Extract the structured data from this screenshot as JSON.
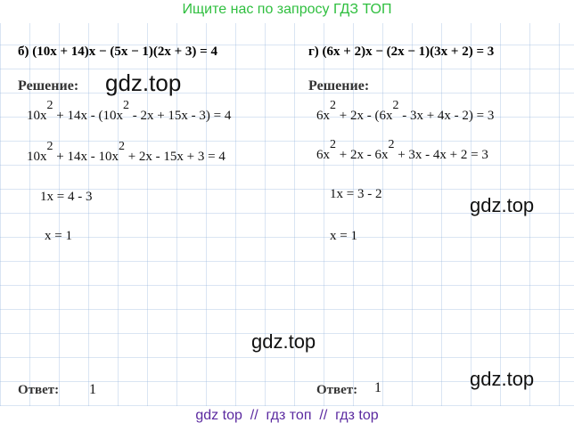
{
  "header": {
    "title": "Ищите нас по запросу ГДЗ ТОП"
  },
  "left": {
    "problem": "б) (10x + 14)x − (5x − 1)(2x + 3) = 4",
    "solution_label": "Решение:",
    "lines": [
      [
        "10x",
        "2",
        " + 14x - (10x",
        "2",
        " - 2x + 15x - 3) = 4"
      ],
      [
        "10x",
        "2",
        " + 14x - 10x",
        "2",
        " + 2x - 15x + 3 = 4"
      ],
      [
        "1x = 4 - 3"
      ],
      [
        "x = 1"
      ]
    ],
    "answer_label": "Ответ:",
    "answer": "1"
  },
  "right": {
    "problem": "г) (6x + 2)x − (2x − 1)(3x + 2) = 3",
    "solution_label": "Решение:",
    "lines": [
      [
        "6x",
        "2",
        " + 2x - (6x",
        "2",
        " - 3x + 4x - 2) = 3"
      ],
      [
        "6x",
        "2",
        " + 2x - 6x",
        "2",
        " + 3x - 4x + 2 = 3"
      ],
      [
        "1x = 3 - 2"
      ],
      [
        "x = 1"
      ]
    ],
    "answer_label": "Ответ:",
    "answer": "1"
  },
  "watermarks": [
    "gdz.top",
    "gdz.top",
    "gdz.top",
    "gdz.top"
  ],
  "footer": {
    "text": "gdz top  //  гдз топ  //  гдз top"
  }
}
